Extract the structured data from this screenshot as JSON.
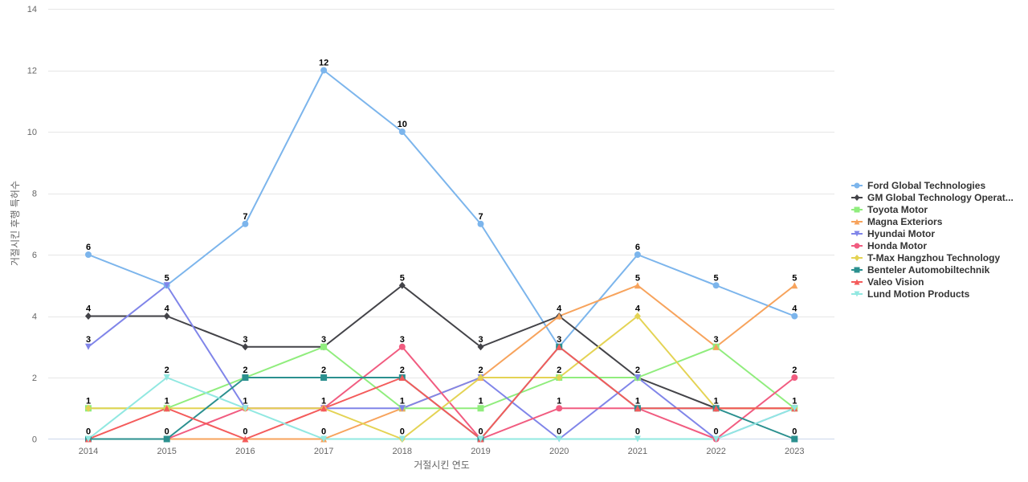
{
  "chart_data": {
    "type": "line",
    "title": "",
    "xlabel": "거절시킨 연도",
    "ylabel": "거절시킨 후행 특허수",
    "ylim": [
      0,
      14
    ],
    "y_ticks": [
      0,
      2,
      4,
      6,
      8,
      10,
      12,
      14
    ],
    "grid": true,
    "legend_position": "right",
    "categories": [
      "2014",
      "2015",
      "2016",
      "2017",
      "2018",
      "2019",
      "2020",
      "2021",
      "2022",
      "2023"
    ],
    "series": [
      {
        "name": "Ford Global Technologies",
        "color": "#7cb5ec",
        "marker": "circle",
        "values": [
          6,
          5,
          7,
          12,
          10,
          7,
          3,
          6,
          5,
          4
        ]
      },
      {
        "name": "GM Global Technology Operat...",
        "color": "#434348",
        "marker": "diamond",
        "values": [
          4,
          4,
          3,
          3,
          5,
          3,
          4,
          2,
          1,
          1
        ]
      },
      {
        "name": "Toyota Motor",
        "color": "#90ed7d",
        "marker": "square",
        "values": [
          1,
          1,
          2,
          3,
          1,
          1,
          2,
          2,
          3,
          1
        ]
      },
      {
        "name": "Magna Exteriors",
        "color": "#f7a35c",
        "marker": "triangle",
        "values": [
          0,
          0,
          0,
          0,
          1,
          2,
          4,
          5,
          3,
          5
        ]
      },
      {
        "name": "Hyundai Motor",
        "color": "#8085e9",
        "marker": "triangle-down",
        "values": [
          3,
          5,
          1,
          1,
          1,
          2,
          0,
          2,
          0,
          1
        ]
      },
      {
        "name": "Honda Motor",
        "color": "#f15c80",
        "marker": "circle",
        "values": [
          0,
          0,
          1,
          1,
          3,
          0,
          1,
          1,
          0,
          2
        ]
      },
      {
        "name": "T-Max Hangzhou Technology",
        "color": "#e4d354",
        "marker": "diamond",
        "values": [
          1,
          1,
          1,
          1,
          0,
          2,
          2,
          4,
          1,
          1
        ]
      },
      {
        "name": "Benteler Automobiltechnik",
        "color": "#2b908f",
        "marker": "square",
        "values": [
          0,
          0,
          2,
          2,
          2,
          0,
          3,
          1,
          1,
          0
        ]
      },
      {
        "name": "Valeo Vision",
        "color": "#f45b5b",
        "marker": "triangle",
        "values": [
          0,
          1,
          0,
          1,
          2,
          0,
          3,
          1,
          1,
          1
        ]
      },
      {
        "name": "Lund Motion Products",
        "color": "#91e8e1",
        "marker": "triangle-down",
        "values": [
          0,
          2,
          1,
          0,
          0,
          0,
          0,
          0,
          0,
          1
        ]
      }
    ],
    "data_labels": [
      {
        "x": "2014",
        "values": [
          6,
          4,
          3,
          1,
          0
        ]
      },
      {
        "x": "2015",
        "values": [
          5,
          4,
          2,
          1,
          0
        ]
      },
      {
        "x": "2016",
        "values": [
          7,
          3,
          2,
          1,
          0
        ]
      },
      {
        "x": "2017",
        "values": [
          12,
          3,
          2,
          1,
          0
        ]
      },
      {
        "x": "2018",
        "values": [
          10,
          5,
          3,
          2,
          1,
          0
        ]
      },
      {
        "x": "2019",
        "values": [
          7,
          3,
          2,
          1,
          0
        ]
      },
      {
        "x": "2020",
        "values": [
          4,
          3,
          2,
          1,
          0
        ]
      },
      {
        "x": "2021",
        "values": [
          6,
          5,
          4,
          2,
          1,
          0
        ]
      },
      {
        "x": "2022",
        "values": [
          5,
          3,
          1,
          0
        ]
      },
      {
        "x": "2023",
        "values": [
          5,
          4,
          2,
          1,
          0
        ]
      }
    ]
  }
}
